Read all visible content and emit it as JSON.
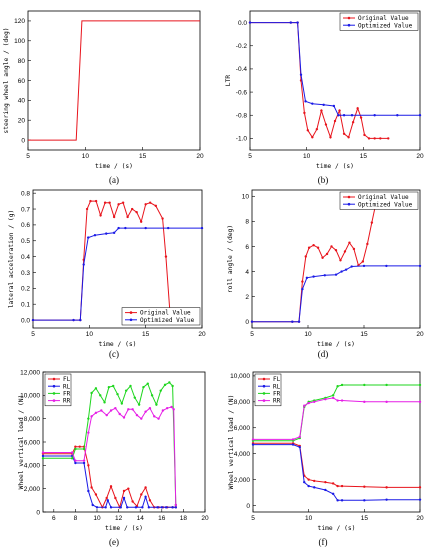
{
  "chart_data": [
    {
      "type": "line",
      "panel_label": "(a)",
      "xlabel": "time / (s)",
      "ylabel": "steering wheel angle / (deg)",
      "xlim": [
        5,
        20
      ],
      "ylim": [
        -10,
        130
      ],
      "xticks": [
        "5",
        "10",
        "15",
        "20"
      ],
      "yticks": [
        "0",
        "20",
        "40",
        "60",
        "80",
        "100",
        "120"
      ],
      "legend_position": "none",
      "series": [
        {
          "color": "#e8141c",
          "markers": false,
          "x": [
            5,
            9.2,
            9.7,
            20
          ],
          "y": [
            0,
            0,
            120,
            120
          ]
        }
      ]
    },
    {
      "type": "line",
      "panel_label": "(b)",
      "xlabel": "time / (s)",
      "ylabel": "LTR",
      "xlim": [
        5,
        20
      ],
      "ylim": [
        -1.1,
        0.1
      ],
      "xticks": [
        "5",
        "10",
        "15",
        "20"
      ],
      "yticks": [
        "0.0",
        "-0.2",
        "-0.4",
        "-0.6",
        "-0.8",
        "-1.0"
      ],
      "legend_position": "top-right",
      "series": [
        {
          "name": "Original Value",
          "color": "#e8141c",
          "markers": true,
          "x": [
            5,
            8.6,
            9.2,
            9.5,
            9.8,
            10.1,
            10.5,
            10.9,
            11.3,
            11.7,
            12.1,
            12.5,
            12.9,
            13.3,
            13.7,
            14.1,
            14.5,
            14.8,
            15.1,
            15.5,
            16,
            16.5,
            17.2
          ],
          "y": [
            0,
            0,
            0,
            -0.5,
            -0.78,
            -0.93,
            -0.99,
            -0.92,
            -0.76,
            -0.88,
            -0.99,
            -0.85,
            -0.76,
            -0.96,
            -0.99,
            -0.86,
            -0.74,
            -0.82,
            -0.97,
            -1.0,
            -1.0,
            -1.0,
            -1.0
          ]
        },
        {
          "name": "Optimized Value",
          "color": "#1a1ae6",
          "markers": true,
          "x": [
            5,
            8.6,
            9.2,
            9.5,
            9.9,
            10.5,
            11.5,
            12.4,
            12.8,
            13.3,
            14,
            16,
            18,
            20
          ],
          "y": [
            0,
            0,
            0,
            -0.45,
            -0.68,
            -0.7,
            -0.71,
            -0.72,
            -0.8,
            -0.8,
            -0.8,
            -0.8,
            -0.8,
            -0.8
          ]
        }
      ]
    },
    {
      "type": "line",
      "panel_label": "(c)",
      "xlabel": "time / (s)",
      "ylabel": "lateral acceleration / (g)",
      "xlim": [
        5,
        20
      ],
      "ylim": [
        -0.05,
        0.82
      ],
      "xticks": [
        "5",
        "10",
        "15",
        "20"
      ],
      "yticks": [
        "0.0",
        "0.1",
        "0.2",
        "0.3",
        "0.4",
        "0.5",
        "0.6",
        "0.7",
        "0.8"
      ],
      "legend_position": "bottom-right",
      "series": [
        {
          "name": "Original Value",
          "color": "#e8141c",
          "markers": true,
          "x": [
            5,
            8.6,
            9.2,
            9.5,
            9.8,
            10.1,
            10.6,
            11.0,
            11.4,
            11.8,
            12.2,
            12.6,
            13.0,
            13.4,
            13.8,
            14.2,
            14.6,
            15.0,
            15.4,
            15.9,
            16.5,
            16.8,
            17.2
          ],
          "y": [
            0,
            0,
            0,
            0.38,
            0.7,
            0.75,
            0.75,
            0.66,
            0.74,
            0.74,
            0.65,
            0.73,
            0.74,
            0.65,
            0.7,
            0.68,
            0.62,
            0.73,
            0.74,
            0.72,
            0.64,
            0.4,
            0.0
          ]
        },
        {
          "name": "Optimized Value",
          "color": "#1a1ae6",
          "markers": true,
          "x": [
            5,
            8.6,
            9.2,
            9.5,
            9.9,
            10.5,
            11.5,
            12.2,
            12.6,
            13.2,
            15,
            17,
            20
          ],
          "y": [
            0,
            0,
            0,
            0.35,
            0.52,
            0.535,
            0.545,
            0.55,
            0.58,
            0.58,
            0.58,
            0.58,
            0.58
          ]
        }
      ]
    },
    {
      "type": "line",
      "panel_label": "(d)",
      "xlabel": "time / (s)",
      "ylabel": "roll angle / (deg)",
      "xlim": [
        5,
        20
      ],
      "ylim": [
        -0.5,
        10.5
      ],
      "xticks": [
        "5",
        "10",
        "15",
        "20"
      ],
      "yticks": [
        "0",
        "2",
        "4",
        "6",
        "8",
        "10"
      ],
      "legend_position": "top-right",
      "series": [
        {
          "name": "Original Value",
          "color": "#e8141c",
          "markers": true,
          "x": [
            5,
            8.6,
            9.2,
            9.5,
            9.8,
            10.1,
            10.5,
            10.9,
            11.3,
            11.7,
            12.1,
            12.5,
            12.9,
            13.3,
            13.7,
            14.1,
            14.5,
            14.9,
            15.3,
            15.7,
            16.2
          ],
          "y": [
            0,
            0,
            0,
            3.2,
            5.2,
            5.9,
            6.1,
            5.9,
            5.1,
            5.4,
            6.0,
            5.7,
            4.9,
            5.6,
            6.3,
            5.8,
            4.5,
            4.8,
            6.2,
            7.9,
            10.0
          ]
        },
        {
          "name": "Optimized Value",
          "color": "#1a1ae6",
          "markers": true,
          "x": [
            5,
            8.6,
            9.2,
            9.5,
            9.9,
            10.5,
            11.5,
            12.5,
            13.0,
            13.4,
            13.9,
            15,
            17,
            20
          ],
          "y": [
            0,
            0,
            0,
            2.6,
            3.5,
            3.6,
            3.7,
            3.75,
            4.0,
            4.15,
            4.4,
            4.45,
            4.45,
            4.45
          ]
        }
      ]
    },
    {
      "type": "line",
      "panel_label": "(e)",
      "xlabel": "time / (s)",
      "ylabel": "Wheel vertical load / (N)",
      "xlim": [
        5,
        20
      ],
      "ylim": [
        0,
        12000
      ],
      "xticks": [
        "6",
        "8",
        "10",
        "12",
        "14",
        "16",
        "18",
        "20"
      ],
      "yticks": [
        "0",
        "2,000",
        "4,000",
        "6,000",
        "8,000",
        "10,000",
        "12,000"
      ],
      "legend_position": "top-left",
      "series": [
        {
          "name": "FL",
          "color": "#e8141c",
          "markers": true,
          "x": [
            5,
            7.7,
            8.0,
            8.4,
            8.8,
            9.2,
            9.5,
            9.9,
            10.5,
            10.9,
            11.3,
            11.7,
            12.1,
            12.5,
            12.9,
            13.3,
            13.7,
            14.1,
            14.5,
            14.9,
            15.3,
            15.7,
            16.1,
            16.5,
            17.0,
            17.3
          ],
          "y": [
            5000,
            5000,
            5600,
            5600,
            5600,
            4000,
            2100,
            1500,
            400,
            1200,
            2200,
            1200,
            400,
            1800,
            2000,
            900,
            500,
            1500,
            2100,
            1000,
            400,
            400,
            400,
            400,
            400,
            400
          ]
        },
        {
          "name": "RL",
          "color": "#1a1ae6",
          "markers": true,
          "x": [
            5,
            7.7,
            8.0,
            8.8,
            9.2,
            9.6,
            10.0,
            10.8,
            11.0,
            11.3,
            12.2,
            12.5,
            12.8,
            13.6,
            14.2,
            14.5,
            14.8,
            15.6,
            16.0,
            16.4,
            17.0,
            17.3
          ],
          "y": [
            4800,
            4800,
            4200,
            4200,
            1800,
            600,
            400,
            400,
            1000,
            400,
            400,
            1200,
            400,
            400,
            400,
            1300,
            400,
            400,
            400,
            400,
            400,
            400
          ]
        },
        {
          "name": "FR",
          "color": "#1ed61e",
          "markers": true,
          "x": [
            5,
            7.7,
            8.0,
            8.8,
            9.2,
            9.5,
            9.9,
            10.3,
            10.7,
            11.1,
            11.5,
            11.9,
            12.3,
            12.7,
            13.1,
            13.5,
            13.9,
            14.3,
            14.7,
            15.1,
            15.5,
            15.9,
            16.3,
            16.7,
            17.0,
            17.3
          ],
          "y": [
            4600,
            4600,
            5400,
            5400,
            8000,
            10200,
            10600,
            10000,
            9400,
            10700,
            10800,
            10100,
            9300,
            10400,
            10800,
            9800,
            9200,
            10700,
            11000,
            10000,
            9200,
            10400,
            10900,
            11100,
            10800,
            600
          ]
        },
        {
          "name": "RR",
          "color": "#e61ee6",
          "markers": true,
          "x": [
            5,
            7.7,
            8.0,
            8.8,
            9.2,
            9.5,
            9.9,
            10.4,
            10.9,
            11.3,
            11.7,
            12.1,
            12.5,
            12.9,
            13.3,
            13.7,
            14.1,
            14.5,
            14.9,
            15.3,
            15.7,
            16.1,
            16.5,
            16.9,
            17.1,
            17.3
          ],
          "y": [
            5100,
            5100,
            4400,
            4400,
            6800,
            8200,
            8500,
            8700,
            8300,
            8700,
            8900,
            8400,
            8100,
            8800,
            8800,
            8300,
            8000,
            8600,
            8900,
            8200,
            8000,
            8700,
            8900,
            9000,
            8800,
            600
          ]
        }
      ]
    },
    {
      "type": "line",
      "panel_label": "(f)",
      "xlabel": "time / (s)",
      "ylabel": "Wheel vertical load / (N)",
      "xlim": [
        5,
        20
      ],
      "ylim": [
        -500,
        10300
      ],
      "xticks": [
        "5",
        "10",
        "15",
        "20"
      ],
      "yticks": [
        "0",
        "2,000",
        "4,000",
        "6,000",
        "8,000",
        "10,000"
      ],
      "legend_position": "top-left",
      "series": [
        {
          "name": "FL",
          "color": "#e8141c",
          "markers": true,
          "x": [
            5,
            8.6,
            9.2,
            9.6,
            10.0,
            10.5,
            11.5,
            12.2,
            12.6,
            13.0,
            15,
            17,
            20
          ],
          "y": [
            4800,
            4800,
            4600,
            2300,
            2000,
            1900,
            1800,
            1700,
            1500,
            1500,
            1450,
            1400,
            1400
          ]
        },
        {
          "name": "RL",
          "color": "#1a1ae6",
          "markers": true,
          "x": [
            5,
            8.6,
            9.2,
            9.6,
            10.0,
            10.5,
            11.5,
            12.2,
            12.6,
            13.0,
            15,
            17,
            20
          ],
          "y": [
            4700,
            4700,
            4500,
            1800,
            1500,
            1400,
            1200,
            900,
            400,
            400,
            400,
            450,
            450
          ]
        },
        {
          "name": "FR",
          "color": "#1ed61e",
          "markers": true,
          "x": [
            5,
            8.6,
            9.2,
            9.6,
            10.0,
            10.5,
            11.5,
            12.2,
            12.6,
            13.0,
            15,
            17,
            20
          ],
          "y": [
            5000,
            5000,
            5200,
            7600,
            8000,
            8100,
            8300,
            8500,
            9200,
            9300,
            9300,
            9300,
            9300
          ]
        },
        {
          "name": "RR",
          "color": "#e61ee6",
          "markers": true,
          "x": [
            5,
            8.6,
            9.2,
            9.6,
            10.0,
            10.5,
            11.5,
            12.2,
            12.6,
            13.0,
            15,
            17,
            20
          ],
          "y": [
            5100,
            5100,
            5300,
            7700,
            7900,
            8000,
            8200,
            8300,
            8100,
            8100,
            8000,
            8000,
            8000
          ]
        }
      ]
    }
  ]
}
